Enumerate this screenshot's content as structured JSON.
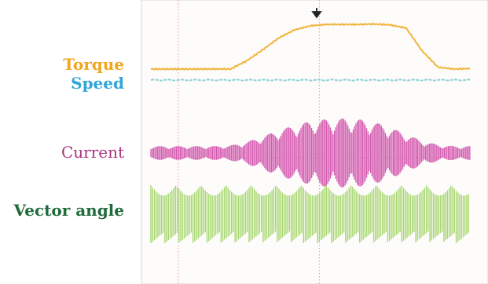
{
  "chart_data": {
    "type": "line",
    "title": "",
    "xlabel": "",
    "ylabel": "",
    "grid": true,
    "trigger_marker": "down-arrow",
    "x": [
      0,
      5,
      10,
      15,
      20,
      25,
      30,
      35,
      40,
      45,
      50,
      55,
      60,
      65,
      70,
      75,
      80,
      85,
      90,
      95,
      100
    ],
    "series": [
      {
        "name": "Torque",
        "color": "#f2b43c",
        "values": [
          0,
          0,
          0,
          0,
          0,
          0,
          0.18,
          0.42,
          0.68,
          0.86,
          0.95,
          0.98,
          0.98,
          0.98,
          0.99,
          0.97,
          0.9,
          0.4,
          0.04,
          0.0,
          0.01
        ]
      },
      {
        "name": "Speed",
        "color": "#8fd0d6",
        "values": [
          0,
          0,
          0,
          0,
          0,
          0,
          0,
          0,
          0,
          0,
          0,
          0,
          0,
          0,
          0,
          0,
          0,
          0,
          0,
          0,
          0
        ]
      },
      {
        "name": "Current",
        "color": "#d45ab0",
        "values": [
          0.2,
          0.2,
          0.2,
          0.2,
          0.2,
          0.22,
          0.32,
          0.48,
          0.66,
          0.8,
          0.92,
          0.98,
          1.0,
          0.98,
          0.9,
          0.74,
          0.55,
          0.35,
          0.24,
          0.2,
          0.2
        ]
      },
      {
        "name": "Vector angle",
        "color": "#a6d66e",
        "values": [
          1,
          1,
          1,
          1,
          1,
          1,
          1,
          1,
          1,
          1,
          1,
          1,
          1,
          1,
          1,
          1,
          1,
          1,
          1,
          1,
          1
        ]
      }
    ]
  },
  "labels": {
    "torque": "Torque",
    "speed": "Speed",
    "current": "Current",
    "vector_angle": "Vector angle"
  },
  "colors": {
    "torque_label": "#f2a61e",
    "speed_label": "#2fa6d8",
    "current_label": "#a8347e",
    "vector_label": "#1f6b3a",
    "grid": "#e09ab0",
    "marker": "#222222"
  }
}
